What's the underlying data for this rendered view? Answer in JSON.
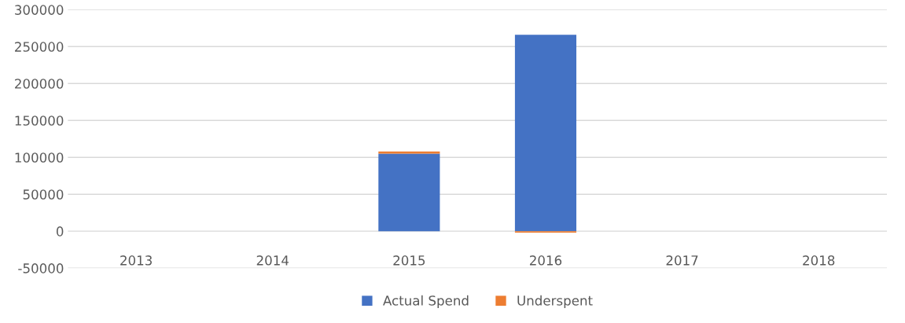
{
  "chart_data": {
    "type": "bar",
    "stacked": true,
    "categories": [
      "2013",
      "2014",
      "2015",
      "2016",
      "2017",
      "2018"
    ],
    "series": [
      {
        "name": "Actual Spend",
        "color": "#4472c4",
        "values": [
          null,
          null,
          105000,
          266000,
          null,
          null
        ]
      },
      {
        "name": "Underspent",
        "color": "#ed7d31",
        "values": [
          null,
          null,
          3000,
          -2000,
          null,
          null
        ]
      }
    ],
    "ylim": [
      -50000,
      300000
    ],
    "yticks": [
      -50000,
      0,
      50000,
      100000,
      150000,
      200000,
      250000,
      300000
    ],
    "grid": "y",
    "legend": "bottom"
  }
}
